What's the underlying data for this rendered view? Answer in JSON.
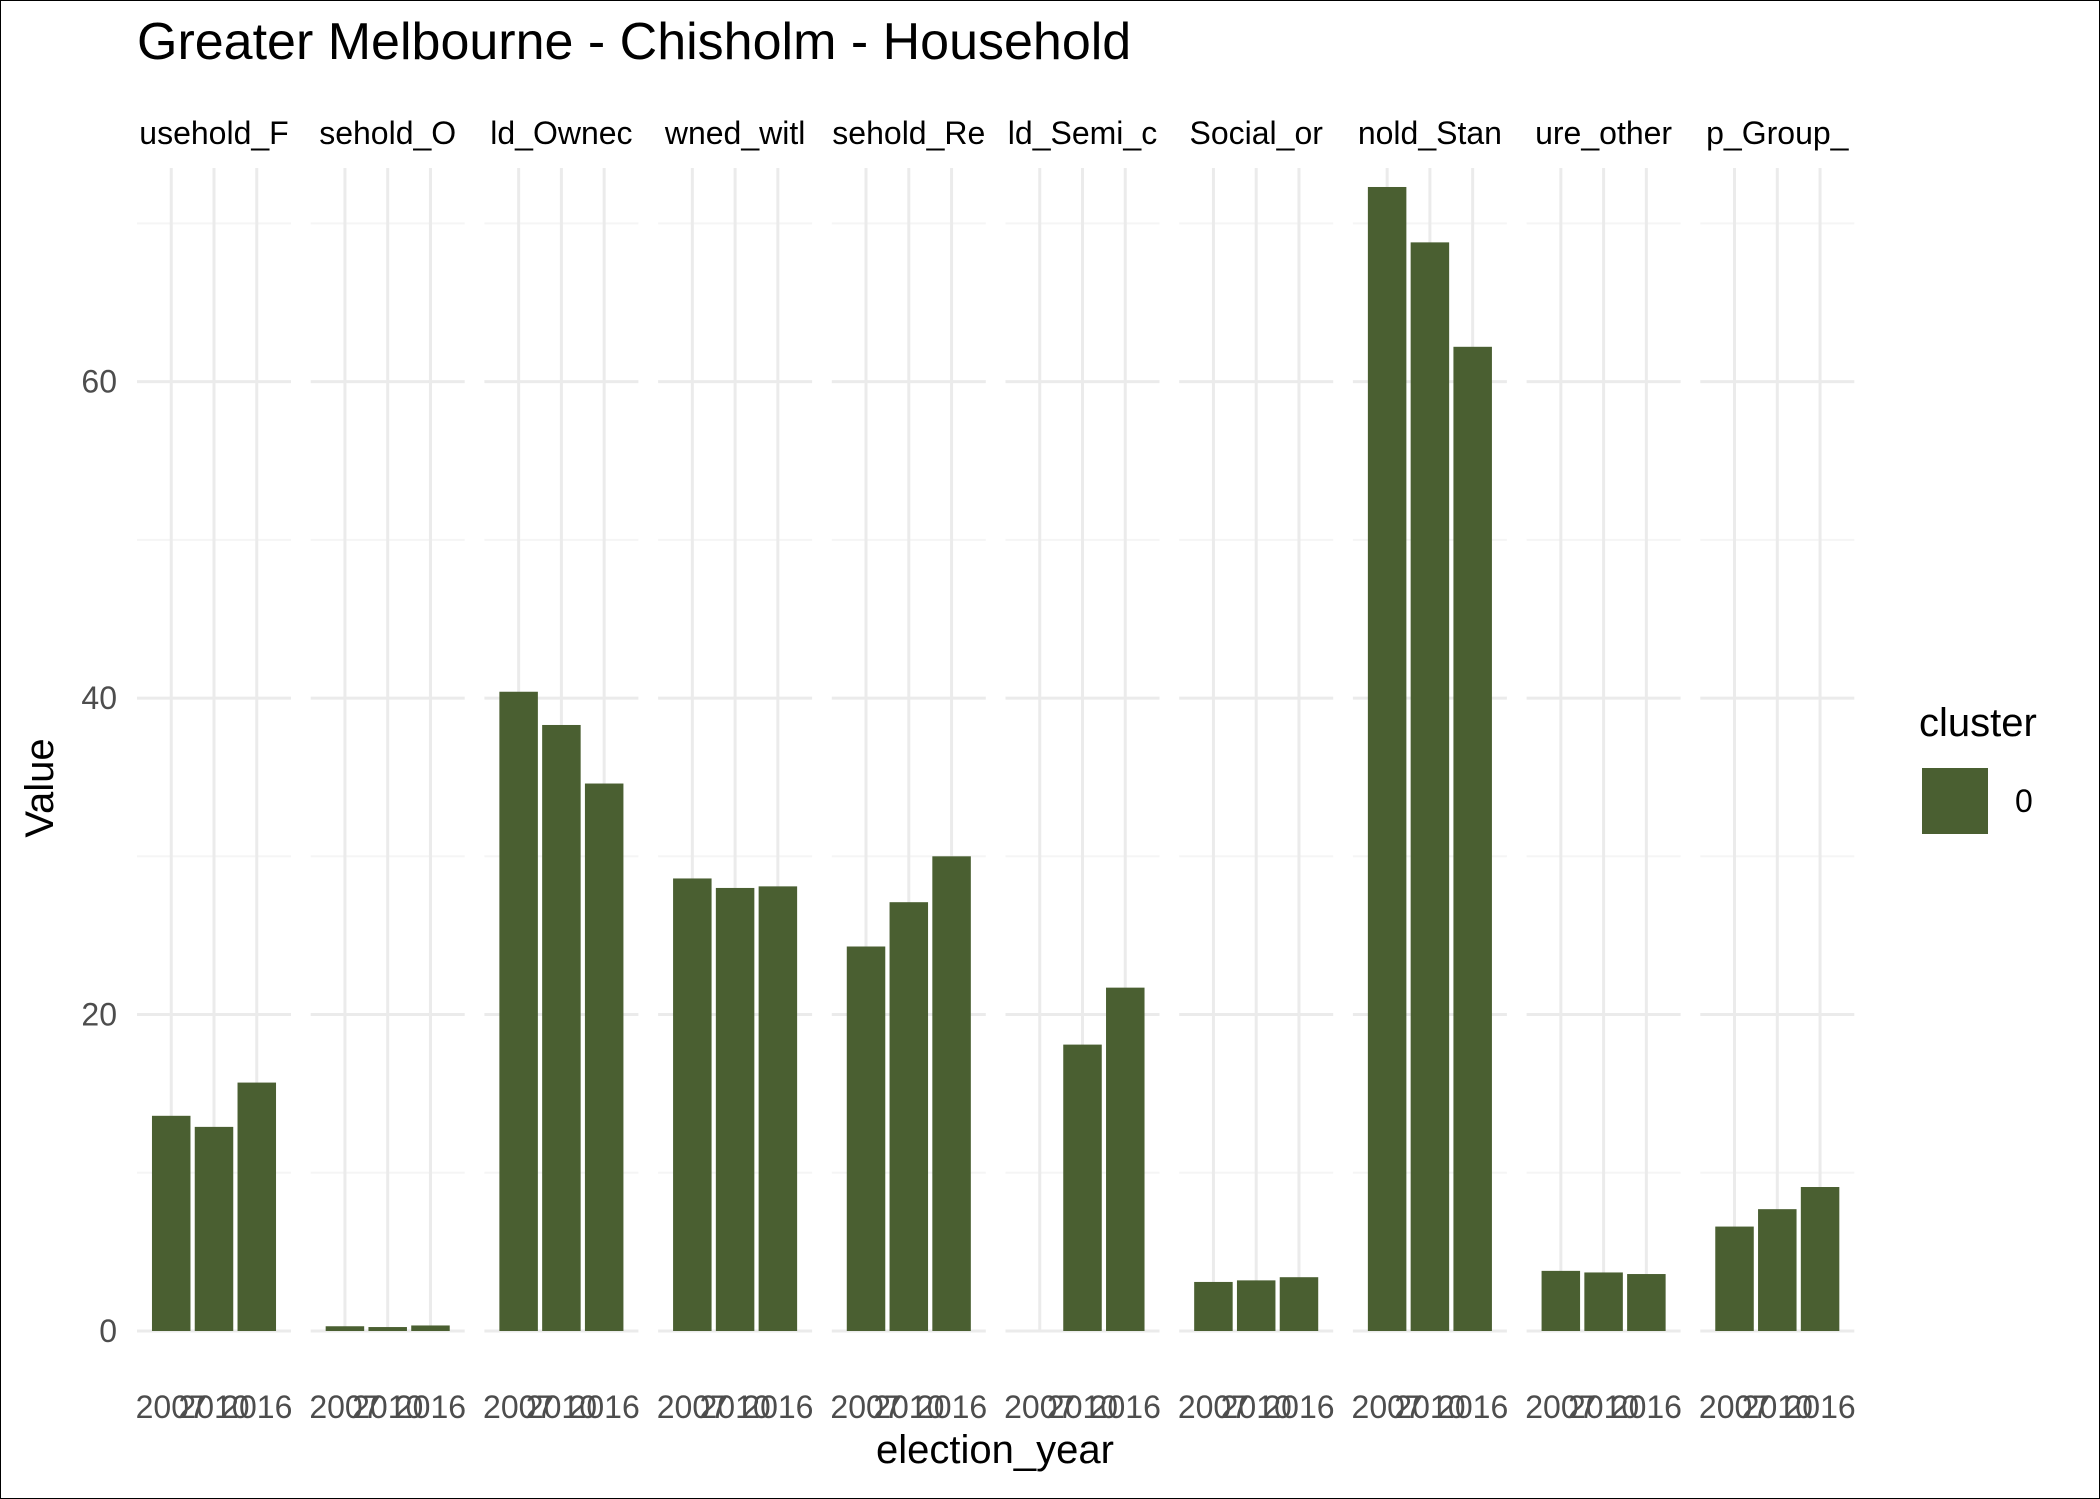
{
  "chart_data": {
    "type": "bar",
    "title": "Greater Melbourne - Chisholm - Household",
    "xlabel": "election_year",
    "ylabel": "Value",
    "ylim": [
      0,
      73.5
    ],
    "y_ticks": [
      0,
      20,
      40,
      60
    ],
    "grid": true,
    "x_categories": [
      "2007",
      "2010",
      "2016"
    ],
    "x_tick_labels": [
      "2007",
      "2010",
      "2016"
    ],
    "facets": [
      {
        "label": "usehold_F",
        "values": [
          13.6,
          12.9,
          15.7
        ]
      },
      {
        "label": "sehold_O",
        "values": [
          0.3,
          0.25,
          0.35
        ]
      },
      {
        "label": "ld_Ownec",
        "values": [
          40.4,
          38.3,
          34.6
        ]
      },
      {
        "label": "wned_witl",
        "values": [
          28.6,
          28.0,
          28.1
        ]
      },
      {
        "label": "sehold_Re",
        "values": [
          24.3,
          27.1,
          30.0
        ]
      },
      {
        "label": "ld_Semi_c",
        "values": [
          null,
          18.1,
          21.7
        ]
      },
      {
        "label": "Social_or",
        "values": [
          3.1,
          3.2,
          3.4
        ]
      },
      {
        "label": "nold_Stan",
        "values": [
          72.3,
          68.8,
          62.2
        ]
      },
      {
        "label": "ure_other",
        "values": [
          3.8,
          3.7,
          3.6
        ]
      },
      {
        "label": "p_Group_",
        "values": [
          6.6,
          7.7,
          9.1
        ]
      }
    ],
    "legend": {
      "title": "cluster",
      "entries": [
        {
          "label": "0",
          "color": "#4a5f31"
        }
      ],
      "position": "right"
    },
    "colors": {
      "bar": "#4a5f31",
      "grid_major": "#ebebeb",
      "grid_minor": "#f5f5f5",
      "axis_text": "#4d4d4d",
      "text": "#000000"
    }
  }
}
